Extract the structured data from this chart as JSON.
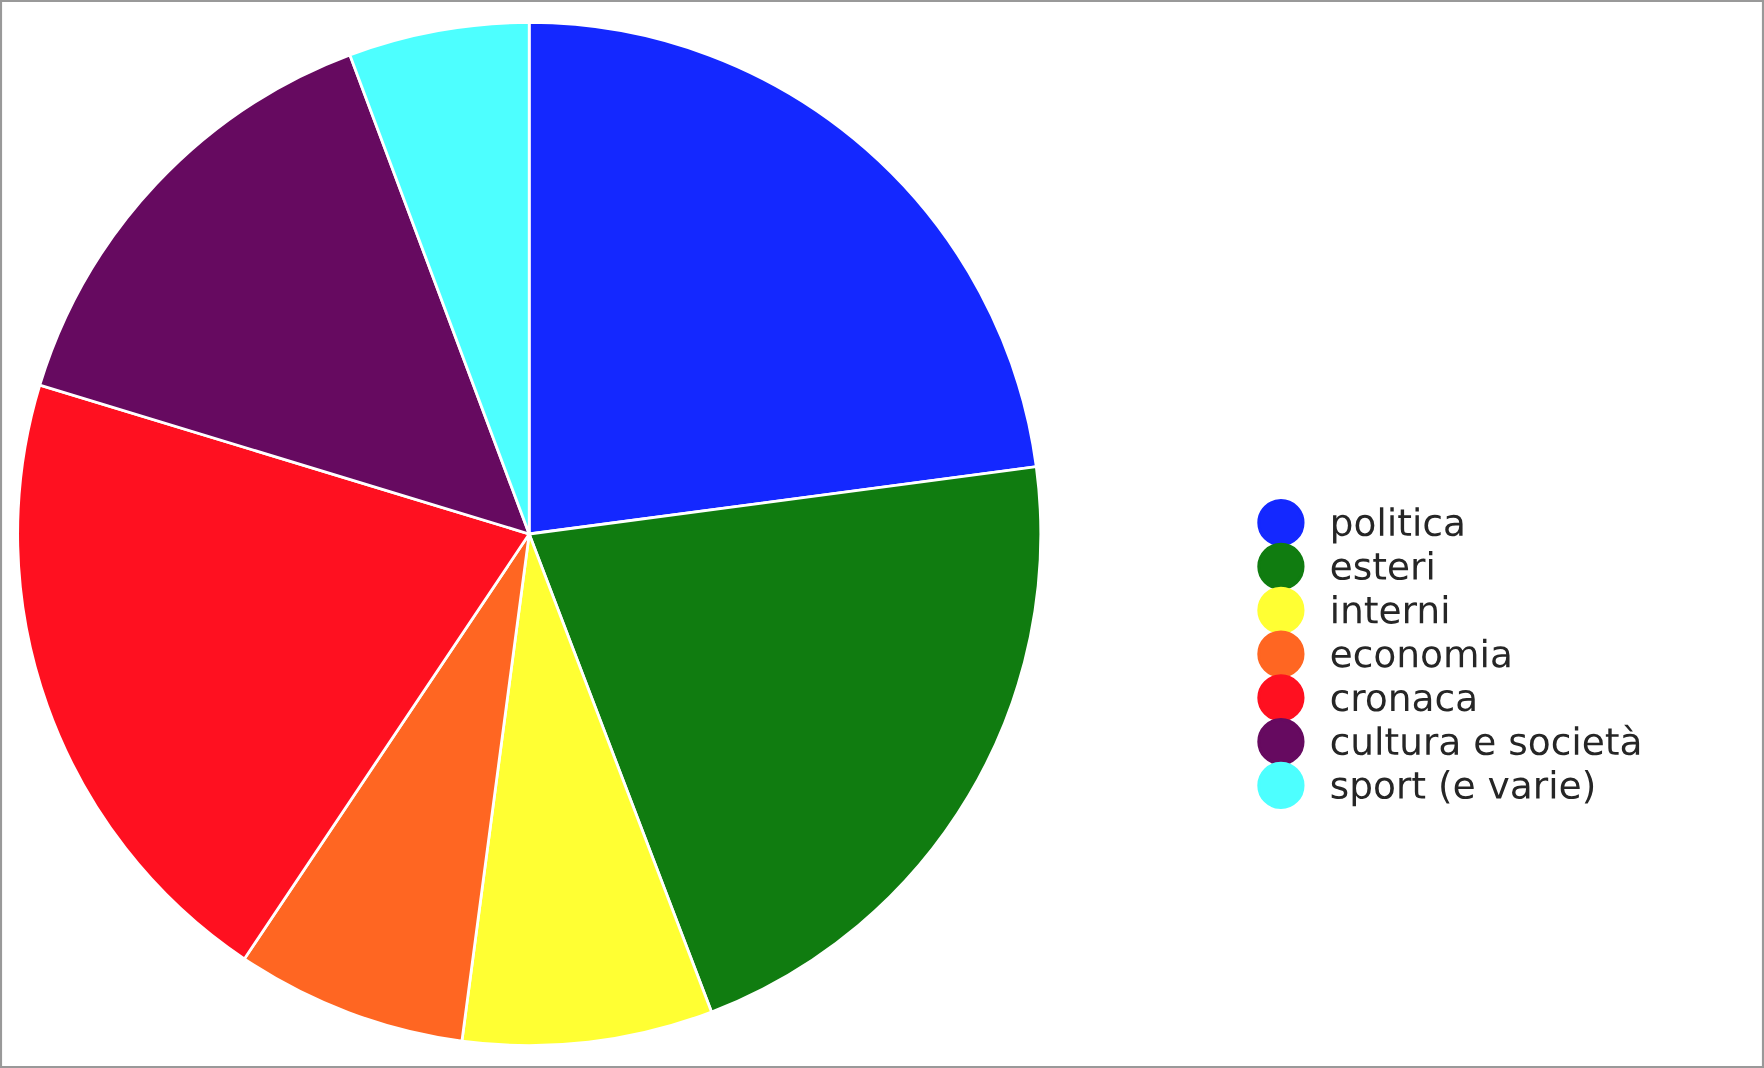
{
  "chart_data": {
    "type": "pie",
    "categories": [
      "politica",
      "esteri",
      "interni",
      "economia",
      "cronaca",
      "cultura e società",
      "sport (e varie)"
    ],
    "values": [
      22.9,
      21.3,
      7.9,
      7.3,
      20.3,
      14.6,
      5.7
    ],
    "colors": [
      "#1428ff",
      "#107c10",
      "#ffff33",
      "#ff6622",
      "#ff1020",
      "#660a60",
      "#4dffff"
    ],
    "legend": "right"
  }
}
